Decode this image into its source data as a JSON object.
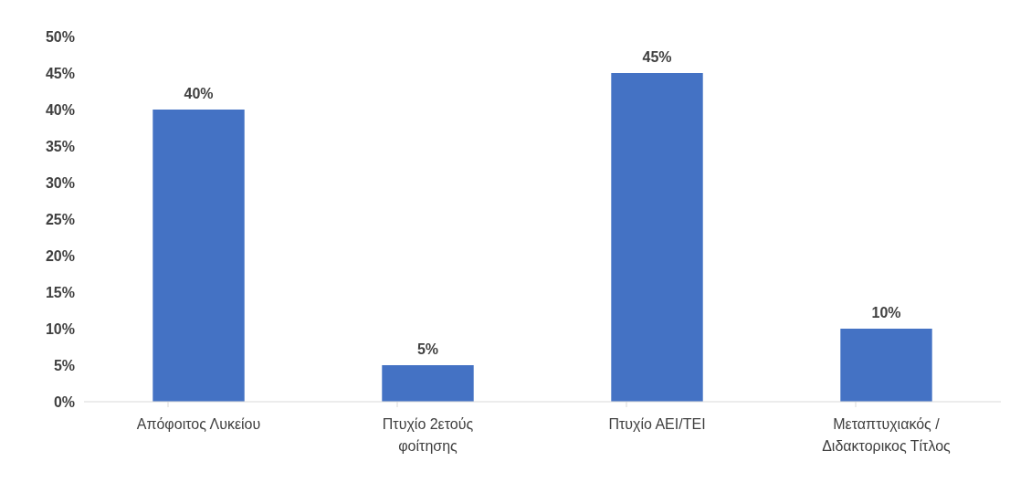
{
  "chart_data": {
    "type": "bar",
    "categories": [
      "Απόφοιτος Λυκείου",
      "Πτυχίο 2ετούς φοίτησης",
      "Πτυχίο ΑΕΙ/ΤΕΙ",
      "Μεταπτυχιακός / Διδακτορικος Τίτλος"
    ],
    "values": [
      40,
      5,
      45,
      10
    ],
    "color": "#4472c4",
    "value_labels": [
      "40%",
      "5%",
      "45%",
      "10%"
    ],
    "ylim": [
      0,
      50
    ],
    "yticks": [
      {
        "value": 0,
        "label": "0%"
      },
      {
        "value": 5,
        "label": "5%"
      },
      {
        "value": 10,
        "label": "10%"
      },
      {
        "value": 15,
        "label": "15%"
      },
      {
        "value": 20,
        "label": "20%"
      },
      {
        "value": 25,
        "label": "25%"
      },
      {
        "value": 30,
        "label": "30%"
      },
      {
        "value": 35,
        "label": "35%"
      },
      {
        "value": 40,
        "label": "40%"
      },
      {
        "value": 45,
        "label": "45%"
      },
      {
        "value": 50,
        "label": "50%"
      }
    ],
    "grid": false
  }
}
